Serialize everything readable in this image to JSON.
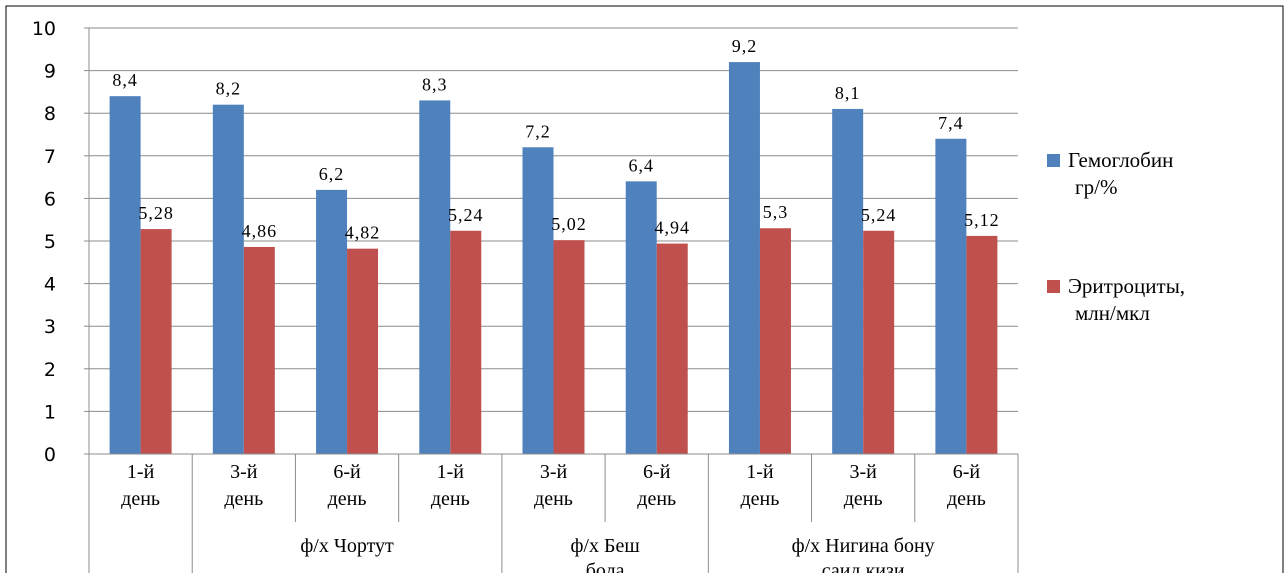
{
  "chart_data": {
    "type": "bar",
    "ylim": [
      0,
      10
    ],
    "yticks": [
      "0",
      "1",
      "2",
      "3",
      "4",
      "5",
      "6",
      "7",
      "8",
      "9",
      "10"
    ],
    "categories": [
      [
        "1-й",
        "день"
      ],
      [
        "3-й",
        "день"
      ],
      [
        "6-й",
        "день"
      ],
      [
        "1-й",
        "день"
      ],
      [
        "3-й",
        "день"
      ],
      [
        "6-й",
        "день"
      ],
      [
        "1-й",
        "день"
      ],
      [
        "3-й",
        "день"
      ],
      [
        "6-й",
        "день"
      ]
    ],
    "groups": [
      {
        "label": [
          ""
        ],
        "span": [
          0,
          0
        ]
      },
      {
        "label": [
          "ф/х  Чортут"
        ],
        "span": [
          1,
          3
        ]
      },
      {
        "label": [
          "ф/х   Беш",
          "бола"
        ],
        "span": [
          4,
          5
        ]
      },
      {
        "label": [
          "ф/х   Нигина бону",
          "саид кизи"
        ],
        "span": [
          6,
          8
        ]
      }
    ],
    "series": [
      {
        "name": [
          "Гемоглобин",
          "гр/%"
        ],
        "color": "#4F81BD",
        "values": [
          8.4,
          8.2,
          6.2,
          8.3,
          7.2,
          6.4,
          9.2,
          8.1,
          7.4
        ],
        "labels": [
          "8,4",
          "8,2",
          "6,2",
          "8,3",
          "7,2",
          "6,4",
          "9,2",
          "8,1",
          "7,4"
        ]
      },
      {
        "name": [
          "Эритроциты,",
          "млн/мкл"
        ],
        "color": "#C0504D",
        "values": [
          5.28,
          4.86,
          4.82,
          5.24,
          5.02,
          4.94,
          5.3,
          5.24,
          5.12
        ],
        "labels": [
          "5,28",
          "4,86",
          "4,82",
          "5,24",
          "5,02",
          "4,94",
          "5,3",
          "5,24",
          "5,12"
        ]
      }
    ],
    "grid": true,
    "legend": "right"
  }
}
